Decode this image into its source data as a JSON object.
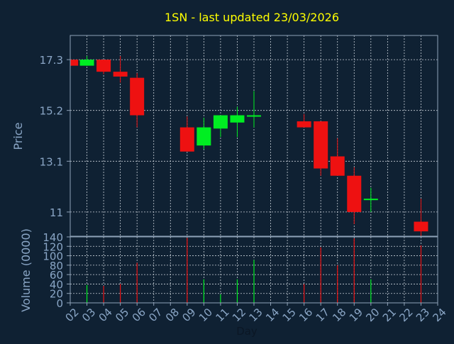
{
  "colors": {
    "background": "#0f2133",
    "plot_border": "#8fa2b8",
    "grid": "#c8d0d8",
    "title": "#ffff00",
    "axis_label": "#8aa6c6",
    "tick_label": "#8aa6c6",
    "up": "#00ee22",
    "down": "#ee1111"
  },
  "chart_data": [
    {
      "type": "candlestick",
      "title": "1SN - last updated 23/03/2026",
      "xlabel": "Day",
      "ylabel": "Price",
      "ylim": [
        10,
        18.3
      ],
      "yticks": [
        11,
        13.1,
        15.2,
        17.3
      ],
      "ytick_labels": [
        "11",
        "13.1",
        "15.2",
        "17.3"
      ],
      "xlim": [
        2,
        24
      ],
      "xticks": [
        2,
        3,
        4,
        5,
        6,
        7,
        8,
        9,
        10,
        11,
        12,
        13,
        14,
        15,
        16,
        17,
        18,
        19,
        20,
        21,
        22,
        23,
        24
      ],
      "xtick_labels": [
        "02",
        "03",
        "04",
        "05",
        "06",
        "07",
        "08",
        "09",
        "10",
        "11",
        "12",
        "13",
        "14",
        "15",
        "16",
        "17",
        "18",
        "19",
        "20",
        "21",
        "22",
        "23",
        "24"
      ],
      "grid": true,
      "candles": [
        {
          "day": 2.05,
          "open": 17.3,
          "close": 17.05,
          "high": 17.3,
          "low": 17.05
        },
        {
          "day": 3,
          "open": 17.05,
          "close": 17.3,
          "high": 17.45,
          "low": 17.05
        },
        {
          "day": 4,
          "open": 17.3,
          "close": 16.8,
          "high": 17.3,
          "low": 16.7
        },
        {
          "day": 5,
          "open": 16.8,
          "close": 16.6,
          "high": 17.45,
          "low": 16.35
        },
        {
          "day": 6,
          "open": 16.55,
          "close": 15.0,
          "high": 16.75,
          "low": 14.5
        },
        {
          "day": 9,
          "open": 14.5,
          "close": 13.5,
          "high": 14.95,
          "low": 13.5
        },
        {
          "day": 10,
          "open": 13.75,
          "close": 14.5,
          "high": 14.9,
          "low": 13.6
        },
        {
          "day": 11,
          "open": 14.45,
          "close": 15.0,
          "high": 15.0,
          "low": 14.1
        },
        {
          "day": 12,
          "open": 14.7,
          "close": 15.0,
          "high": 15.35,
          "low": 14.1
        },
        {
          "day": 13,
          "open": 14.95,
          "close": 15.0,
          "high": 16.0,
          "low": 14.5
        },
        {
          "day": 16,
          "open": 14.75,
          "close": 14.5,
          "high": 15.05,
          "low": 14.5
        },
        {
          "day": 17,
          "open": 14.75,
          "close": 12.8,
          "high": 14.75,
          "low": 12.5
        },
        {
          "day": 18,
          "open": 13.3,
          "close": 12.5,
          "high": 14.05,
          "low": 12.5
        },
        {
          "day": 19,
          "open": 12.5,
          "close": 11.0,
          "high": 12.85,
          "low": 10.5
        },
        {
          "day": 20,
          "open": 11.5,
          "close": 11.55,
          "high": 12.0,
          "low": 11.0
        },
        {
          "day": 23,
          "open": 10.6,
          "close": 10.2,
          "high": 11.55,
          "low": 9.95
        }
      ]
    },
    {
      "type": "bar",
      "xlabel": "Day",
      "ylabel": "Volume (0000)",
      "ylim": [
        0,
        140
      ],
      "yticks": [
        0,
        20,
        40,
        60,
        80,
        100,
        120,
        140
      ],
      "ytick_labels": [
        "0",
        "20",
        "40",
        "60",
        "80",
        "100",
        "120",
        "140"
      ],
      "grid": true,
      "bars": [
        {
          "day": 3,
          "value": 38,
          "color": "up"
        },
        {
          "day": 4,
          "value": 36,
          "color": "down"
        },
        {
          "day": 5,
          "value": 40,
          "color": "down"
        },
        {
          "day": 6,
          "value": 85,
          "color": "down"
        },
        {
          "day": 9,
          "value": 138,
          "color": "down"
        },
        {
          "day": 10,
          "value": 50,
          "color": "up"
        },
        {
          "day": 11,
          "value": 18,
          "color": "up"
        },
        {
          "day": 12,
          "value": 50,
          "color": "up"
        },
        {
          "day": 13,
          "value": 91,
          "color": "up"
        },
        {
          "day": 16,
          "value": 40,
          "color": "down"
        },
        {
          "day": 17,
          "value": 118,
          "color": "down"
        },
        {
          "day": 18,
          "value": 80,
          "color": "down"
        },
        {
          "day": 19,
          "value": 137,
          "color": "down"
        },
        {
          "day": 20,
          "value": 50,
          "color": "up"
        },
        {
          "day": 23,
          "value": 122,
          "color": "down"
        }
      ]
    }
  ]
}
